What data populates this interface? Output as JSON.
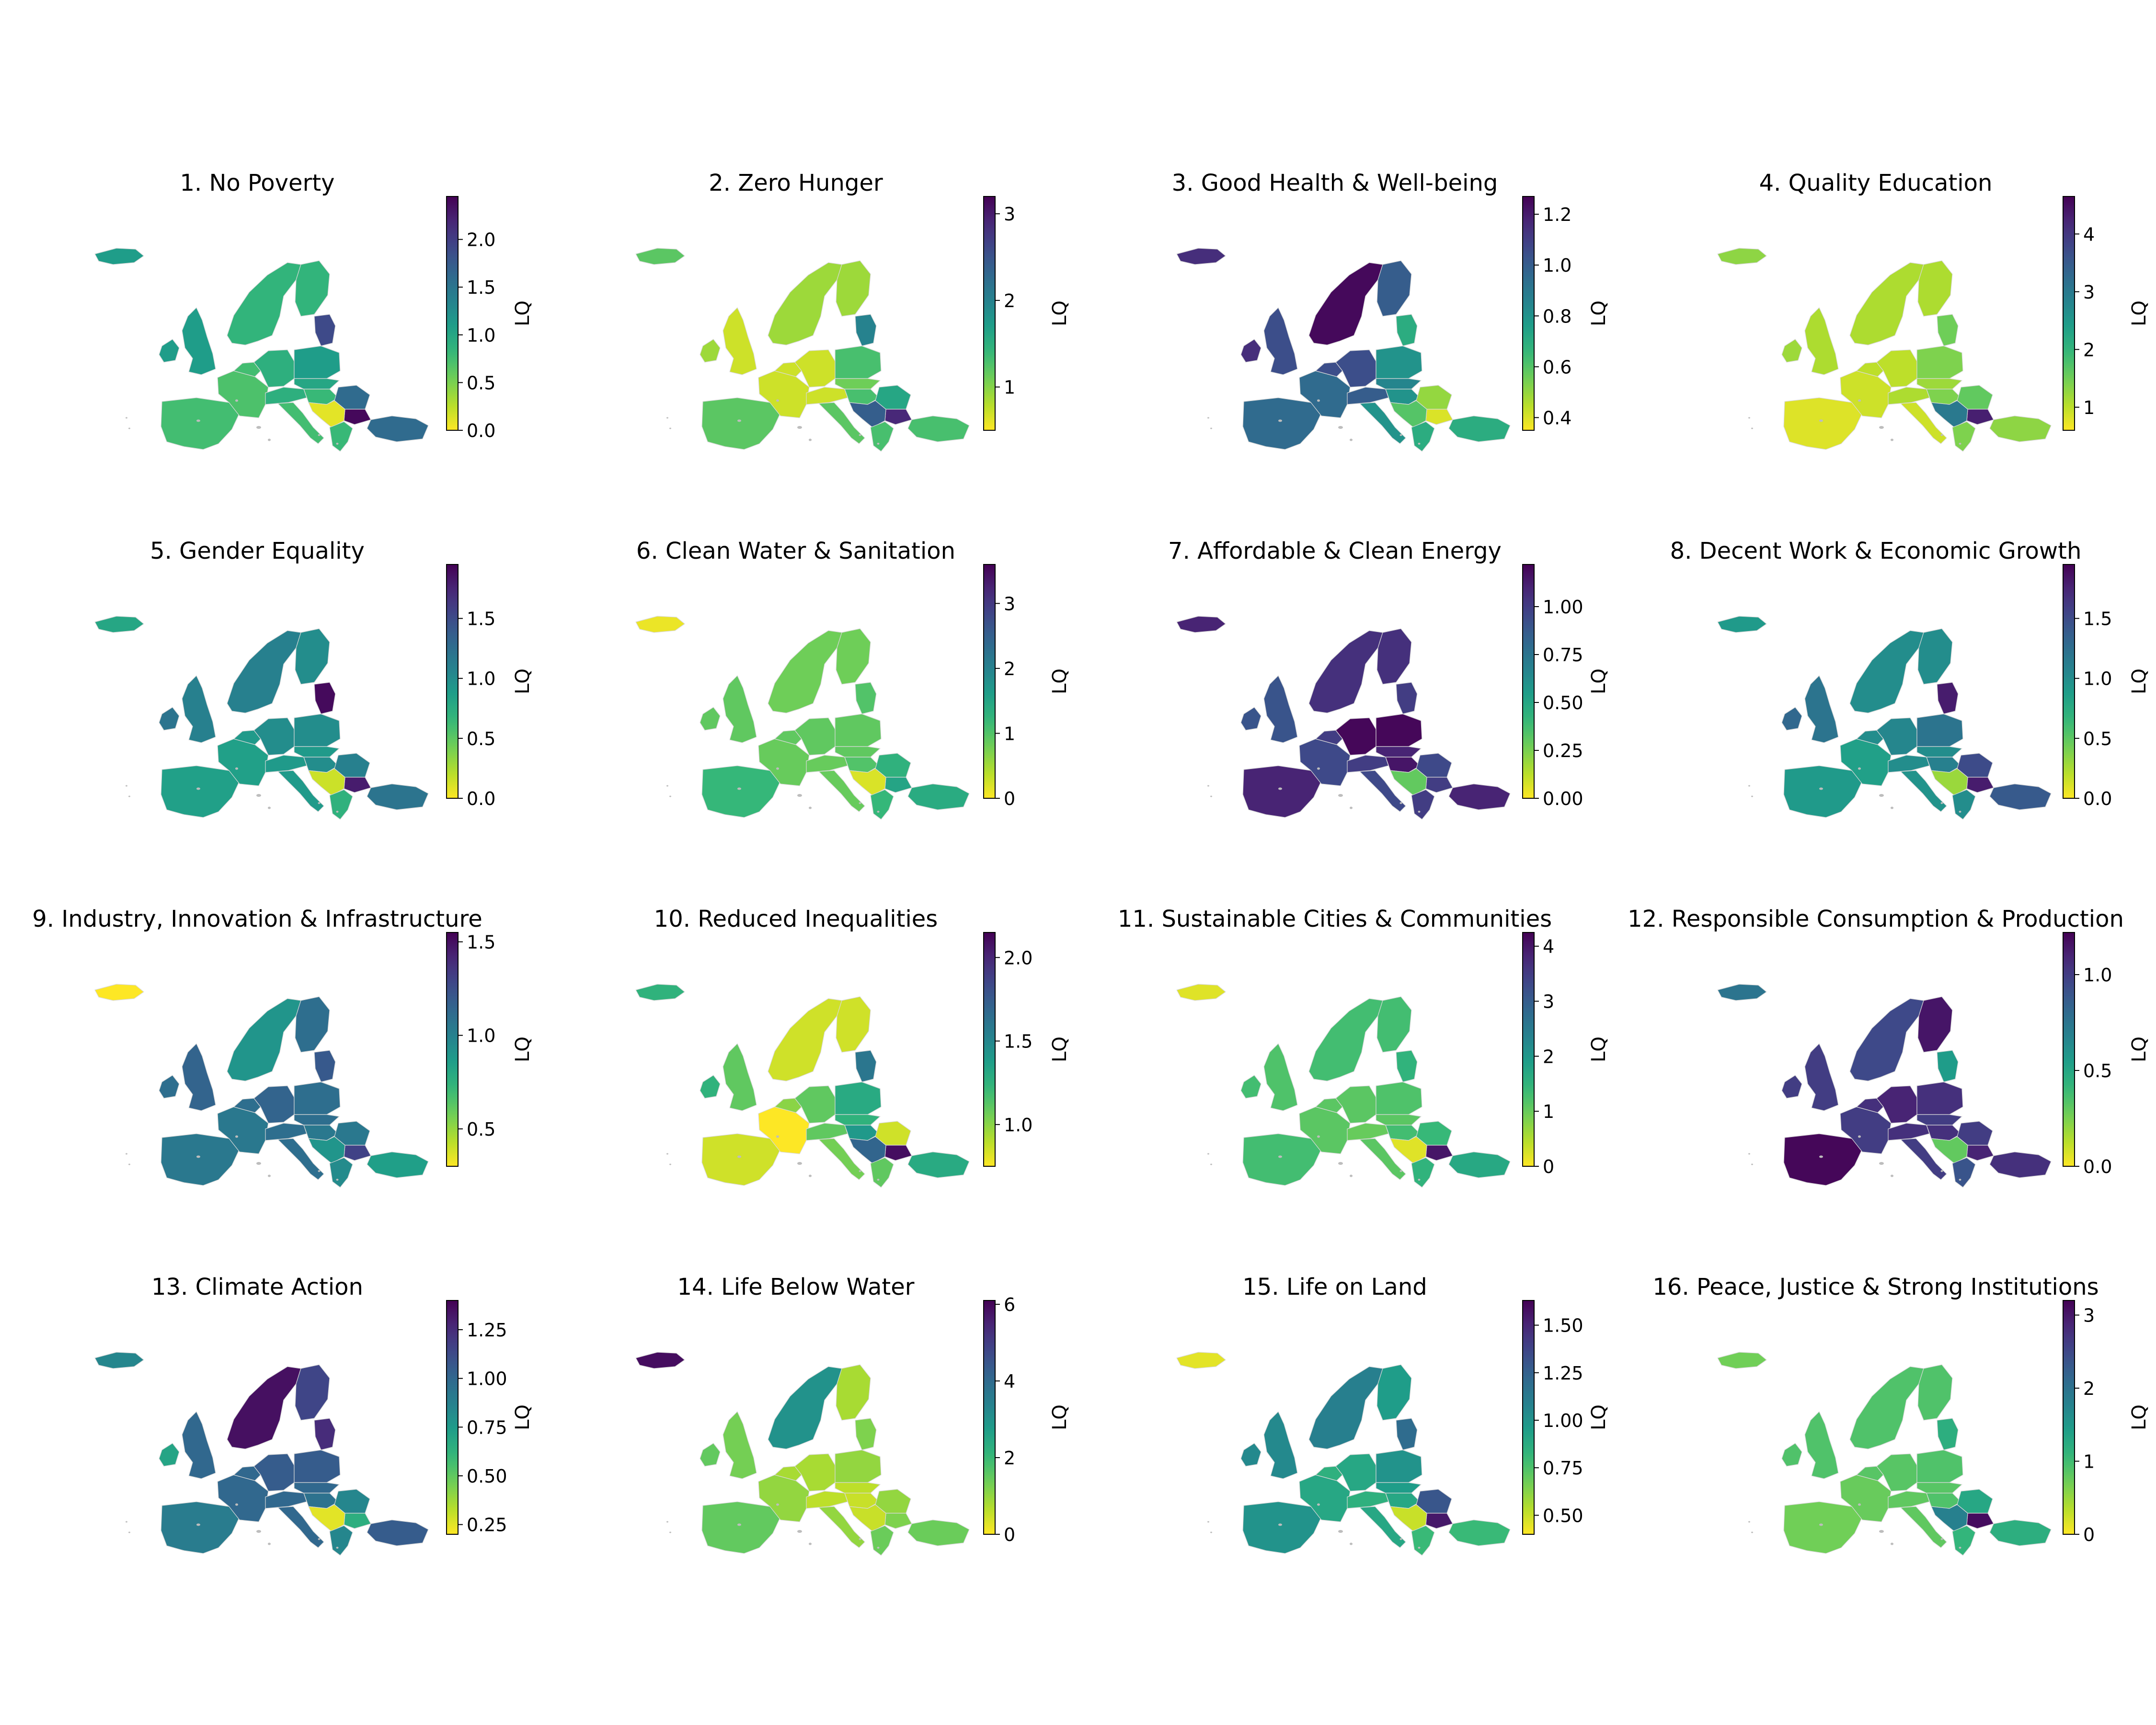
{
  "figure": {
    "colorbar_label": "LQ",
    "colormap": "viridis_r",
    "colormap_stops": [
      "#fde725",
      "#b5de2b",
      "#6ece58",
      "#35b779",
      "#1f9e89",
      "#26828e",
      "#31688e",
      "#3e4989",
      "#482878",
      "#440154"
    ]
  },
  "chart_data": [
    {
      "type": "choropleth",
      "title": "1. No Poverty",
      "colorbar": {
        "label": "LQ",
        "range": [
          0,
          2.45
        ],
        "ticks": [
          "0.0",
          "0.5",
          "1.0",
          "1.5",
          "2.0"
        ],
        "tick_values": [
          0,
          0.5,
          1.0,
          1.5,
          2.0
        ]
      },
      "values": {
        "iceland": 1.1,
        "ireland": 1.1,
        "uk": 1.1,
        "iberia": 0.75,
        "france": 0.7,
        "italy": 0.75,
        "benelux": 0.75,
        "germany": 0.9,
        "alps": 0.9,
        "poland": 1.1,
        "czech_slovakia": 1.0,
        "hungary": 0.8,
        "romania": 1.6,
        "bulgaria": 2.4,
        "balkans": 0.1,
        "greece": 0.8,
        "turkey": 1.6,
        "scandinavia": 0.85,
        "finland": 0.85,
        "baltics": 1.9
      }
    },
    {
      "type": "choropleth",
      "title": "2. Zero Hunger",
      "colorbar": {
        "label": "LQ",
        "range": [
          0.5,
          3.2
        ],
        "ticks": [
          "1",
          "2",
          "3"
        ],
        "tick_values": [
          1,
          2,
          3
        ]
      },
      "values": {
        "iceland": 1.2,
        "ireland": 0.9,
        "uk": 0.7,
        "iberia": 1.2,
        "france": 0.7,
        "italy": 1.2,
        "benelux": 0.7,
        "germany": 0.7,
        "alps": 0.7,
        "poland": 1.3,
        "czech_slovakia": 1.1,
        "hungary": 1.3,
        "romania": 1.6,
        "bulgaria": 2.9,
        "balkans": 2.4,
        "greece": 1.3,
        "turkey": 1.3,
        "scandinavia": 0.9,
        "finland": 0.9,
        "baltics": 2.0
      }
    },
    {
      "type": "choropleth",
      "title": "3. Good Health & Well-being",
      "colorbar": {
        "label": "LQ",
        "range": [
          0.35,
          1.27
        ],
        "ticks": [
          "0.4",
          "0.6",
          "0.8",
          "1.0",
          "1.2"
        ],
        "tick_values": [
          0.4,
          0.6,
          0.8,
          1.0,
          1.2
        ]
      },
      "values": {
        "iceland": 1.15,
        "ireland": 1.15,
        "uk": 1.05,
        "iberia": 0.95,
        "france": 0.95,
        "italy": 0.8,
        "benelux": 1.05,
        "germany": 1.05,
        "alps": 1.0,
        "poland": 0.8,
        "czech_slovakia": 0.85,
        "hungary": 0.8,
        "romania": 0.5,
        "bulgaria": 0.4,
        "balkans": 0.6,
        "greece": 0.7,
        "turkey": 0.7,
        "scandinavia": 1.25,
        "finland": 1.0,
        "baltics": 0.7
      }
    },
    {
      "type": "choropleth",
      "title": "4. Quality Education",
      "colorbar": {
        "label": "LQ",
        "range": [
          0.6,
          4.65
        ],
        "ticks": [
          "1",
          "2",
          "3",
          "4"
        ],
        "tick_values": [
          1,
          2,
          3,
          4
        ]
      },
      "values": {
        "iceland": 1.3,
        "ireland": 1.2,
        "uk": 1.1,
        "iberia": 0.8,
        "france": 0.9,
        "italy": 0.9,
        "benelux": 1.0,
        "germany": 1.0,
        "alps": 1.1,
        "poland": 1.4,
        "czech_slovakia": 1.2,
        "hungary": 1.4,
        "romania": 1.6,
        "bulgaria": 4.3,
        "balkans": 3.0,
        "greece": 1.4,
        "turkey": 1.3,
        "scandinavia": 1.1,
        "finland": 1.1,
        "baltics": 1.5
      }
    },
    {
      "type": "choropleth",
      "title": "5. Gender Equality",
      "colorbar": {
        "label": "LQ",
        "range": [
          0,
          1.95
        ],
        "ticks": [
          "0.0",
          "0.5",
          "1.0",
          "1.5"
        ],
        "tick_values": [
          0,
          0.5,
          1.0,
          1.5
        ]
      },
      "values": {
        "iceland": 0.8,
        "ireland": 1.2,
        "uk": 1.1,
        "iberia": 0.85,
        "france": 0.85,
        "italy": 0.9,
        "benelux": 0.9,
        "germany": 1.0,
        "alps": 0.9,
        "poland": 1.0,
        "czech_slovakia": 0.9,
        "hungary": 1.0,
        "romania": 1.1,
        "bulgaria": 1.8,
        "balkans": 0.15,
        "greece": 0.7,
        "turkey": 1.2,
        "scandinavia": 1.1,
        "finland": 1.0,
        "baltics": 1.9
      }
    },
    {
      "type": "choropleth",
      "title": "6. Clean Water & Sanitation",
      "colorbar": {
        "label": "LQ",
        "range": [
          0,
          3.6
        ],
        "ticks": [
          "0",
          "1",
          "2",
          "3"
        ],
        "tick_values": [
          0,
          1,
          2,
          3
        ]
      },
      "values": {
        "iceland": 0.1,
        "ireland": 0.9,
        "uk": 0.9,
        "iberia": 1.2,
        "france": 0.85,
        "italy": 0.85,
        "benelux": 0.9,
        "germany": 0.9,
        "alps": 0.85,
        "poland": 0.9,
        "czech_slovakia": 0.9,
        "hungary": 1.0,
        "romania": 1.3,
        "bulgaria": 1.5,
        "balkans": 0.2,
        "greece": 1.2,
        "turkey": 1.4,
        "scandinavia": 0.8,
        "finland": 0.8,
        "baltics": 1.0
      }
    },
    {
      "type": "choropleth",
      "title": "7. Affordable & Clean Energy",
      "colorbar": {
        "label": "LQ",
        "range": [
          0,
          1.22
        ],
        "ticks": [
          "0.00",
          "0.25",
          "0.50",
          "0.75",
          "1.00"
        ],
        "tick_values": [
          0,
          0.25,
          0.5,
          0.75,
          1.0
        ]
      },
      "values": {
        "iceland": 1.1,
        "ireland": 0.9,
        "uk": 0.9,
        "iberia": 1.1,
        "france": 0.95,
        "italy": 0.95,
        "benelux": 1.0,
        "germany": 1.2,
        "alps": 1.0,
        "poland": 1.2,
        "czech_slovakia": 1.1,
        "hungary": 1.15,
        "romania": 0.95,
        "bulgaria": 1.0,
        "balkans": 0.3,
        "greece": 1.0,
        "turkey": 1.1,
        "scandinavia": 1.05,
        "finland": 1.05,
        "baltics": 1.0
      }
    },
    {
      "type": "choropleth",
      "title": "8. Decent Work & Economic Growth",
      "colorbar": {
        "label": "LQ",
        "range": [
          0,
          1.95
        ],
        "ticks": [
          "0.0",
          "0.5",
          "1.0",
          "1.5"
        ],
        "tick_values": [
          0,
          0.5,
          1.0,
          1.5
        ]
      },
      "values": {
        "iceland": 0.9,
        "ireland": 1.3,
        "uk": 1.2,
        "iberia": 0.9,
        "france": 0.85,
        "italy": 0.95,
        "benelux": 1.0,
        "germany": 1.05,
        "alps": 1.0,
        "poland": 1.2,
        "czech_slovakia": 1.0,
        "hungary": 1.1,
        "romania": 1.5,
        "bulgaria": 1.8,
        "balkans": 0.3,
        "greece": 1.0,
        "turkey": 1.4,
        "scandinavia": 1.0,
        "finland": 1.0,
        "baltics": 1.8
      }
    },
    {
      "type": "choropleth",
      "title": "9. Industry, Innovation & Infrastructure",
      "colorbar": {
        "label": "LQ",
        "range": [
          0.3,
          1.55
        ],
        "ticks": [
          "0.5",
          "1.0",
          "1.5"
        ],
        "tick_values": [
          0.5,
          1.0,
          1.5
        ]
      },
      "values": {
        "iceland": 0.3,
        "ireland": 1.1,
        "uk": 1.15,
        "iberia": 1.05,
        "france": 1.05,
        "italy": 1.1,
        "benelux": 1.1,
        "germany": 1.15,
        "alps": 1.1,
        "poland": 1.1,
        "czech_slovakia": 1.1,
        "hungary": 1.05,
        "romania": 1.05,
        "bulgaria": 1.3,
        "balkans": 0.9,
        "greece": 0.95,
        "turkey": 0.85,
        "scandinavia": 0.9,
        "finland": 1.1,
        "baltics": 1.2
      }
    },
    {
      "type": "choropleth",
      "title": "10.  Reduced Inequalities",
      "colorbar": {
        "label": "LQ",
        "range": [
          0.75,
          2.15
        ],
        "ticks": [
          "1.0",
          "1.5",
          "2.0"
        ],
        "tick_values": [
          1.0,
          1.5,
          2.0
        ]
      },
      "values": {
        "iceland": 1.25,
        "ireland": 1.25,
        "uk": 1.1,
        "iberia": 0.85,
        "france": 0.75,
        "italy": 1.05,
        "benelux": 1.0,
        "germany": 1.1,
        "alps": 1.1,
        "poland": 1.3,
        "czech_slovakia": 1.25,
        "hungary": 1.4,
        "romania": 0.85,
        "bulgaria": 2.1,
        "balkans": 1.7,
        "greece": 1.1,
        "turkey": 1.3,
        "scandinavia": 0.85,
        "finland": 0.85,
        "baltics": 1.6
      }
    },
    {
      "type": "choropleth",
      "title": "11.  Sustainable Cities & Communities",
      "colorbar": {
        "label": "LQ",
        "range": [
          0,
          4.25
        ],
        "ticks": [
          "0",
          "1",
          "2",
          "3",
          "4"
        ],
        "tick_values": [
          0,
          1,
          2,
          3,
          4
        ]
      },
      "values": {
        "iceland": 0.2,
        "ireland": 1.3,
        "uk": 1.2,
        "iberia": 1.3,
        "france": 1.1,
        "italy": 1.1,
        "benelux": 1.1,
        "germany": 1.1,
        "alps": 1.0,
        "poland": 1.2,
        "czech_slovakia": 1.1,
        "hungary": 1.3,
        "romania": 1.4,
        "bulgaria": 4.0,
        "balkans": 0.2,
        "greece": 1.5,
        "turkey": 1.7,
        "scandinavia": 1.3,
        "finland": 1.3,
        "baltics": 1.5
      }
    },
    {
      "type": "choropleth",
      "title": "12.  Responsible Consumption & Production",
      "colorbar": {
        "label": "LQ",
        "range": [
          0,
          1.22
        ],
        "ticks": [
          "0.0",
          "0.5",
          "1.0"
        ],
        "tick_values": [
          0,
          0.5,
          1.0
        ]
      },
      "values": {
        "iceland": 0.75,
        "ireland": 1.0,
        "uk": 1.0,
        "iberia": 1.2,
        "france": 1.0,
        "italy": 1.0,
        "benelux": 1.05,
        "germany": 1.1,
        "alps": 1.05,
        "poland": 1.05,
        "czech_slovakia": 1.0,
        "hungary": 1.05,
        "romania": 1.0,
        "bulgaria": 1.1,
        "balkans": 0.3,
        "greece": 0.9,
        "turkey": 1.05,
        "scandinavia": 0.95,
        "finland": 1.15,
        "baltics": 0.55
      }
    },
    {
      "type": "choropleth",
      "title": "13.  Climate Action",
      "colorbar": {
        "label": "LQ",
        "range": [
          0.2,
          1.4
        ],
        "ticks": [
          "0.25",
          "0.50",
          "0.75",
          "1.00",
          "1.25"
        ],
        "tick_values": [
          0.25,
          0.5,
          0.75,
          1.0,
          1.25
        ]
      },
      "values": {
        "iceland": 0.85,
        "ireland": 0.7,
        "uk": 1.0,
        "iberia": 0.9,
        "france": 1.0,
        "italy": 1.0,
        "benelux": 1.0,
        "germany": 1.05,
        "alps": 1.0,
        "poland": 1.05,
        "czech_slovakia": 1.0,
        "hungary": 0.95,
        "romania": 0.85,
        "bulgaria": 0.65,
        "balkans": 0.25,
        "greece": 0.85,
        "turkey": 1.05,
        "scandinavia": 1.35,
        "finland": 1.15,
        "baltics": 1.25
      }
    },
    {
      "type": "choropleth",
      "title": "14.  Life Below Water",
      "colorbar": {
        "label": "LQ",
        "range": [
          0,
          6.1
        ],
        "ticks": [
          "0",
          "2",
          "4",
          "6"
        ],
        "tick_values": [
          0,
          2,
          4,
          6
        ]
      },
      "values": {
        "iceland": 5.9,
        "ireland": 1.5,
        "uk": 1.3,
        "iberia": 1.5,
        "france": 1.0,
        "italy": 1.0,
        "benelux": 0.8,
        "germany": 0.8,
        "alps": 0.6,
        "poland": 1.0,
        "czech_slovakia": 0.6,
        "hungary": 0.5,
        "romania": 1.0,
        "bulgaria": 1.2,
        "balkans": 0.5,
        "greece": 1.4,
        "turkey": 1.4,
        "scandinavia": 3.0,
        "finland": 0.8,
        "baltics": 1.2
      }
    },
    {
      "type": "choropleth",
      "title": "15.  Life on Land",
      "colorbar": {
        "label": "LQ",
        "range": [
          0.4,
          1.63
        ],
        "ticks": [
          "0.50",
          "0.75",
          "1.00",
          "1.25",
          "1.50"
        ],
        "tick_values": [
          0.5,
          0.75,
          1.0,
          1.25,
          1.5
        ]
      },
      "values": {
        "iceland": 0.45,
        "ireland": 1.05,
        "uk": 1.05,
        "iberia": 1.0,
        "france": 0.9,
        "italy": 0.9,
        "benelux": 0.85,
        "germany": 0.9,
        "alps": 0.85,
        "poland": 1.0,
        "czech_slovakia": 0.95,
        "hungary": 0.9,
        "romania": 1.3,
        "bulgaria": 1.55,
        "balkans": 0.5,
        "greece": 0.8,
        "turkey": 0.8,
        "scandinavia": 1.1,
        "finland": 0.95,
        "baltics": 1.2
      }
    },
    {
      "type": "choropleth",
      "title": "16.  Peace, Justice & Strong Institutions",
      "colorbar": {
        "label": "LQ",
        "range": [
          0,
          3.2
        ],
        "ticks": [
          "0",
          "1",
          "2",
          "3"
        ],
        "tick_values": [
          0,
          1,
          2,
          3
        ]
      },
      "values": {
        "iceland": 0.7,
        "ireland": 0.9,
        "uk": 0.9,
        "iberia": 0.7,
        "france": 0.75,
        "italy": 0.8,
        "benelux": 0.85,
        "germany": 0.85,
        "alps": 0.8,
        "poland": 0.9,
        "czech_slovakia": 0.85,
        "hungary": 0.9,
        "romania": 1.3,
        "bulgaria": 3.1,
        "balkans": 1.8,
        "greece": 1.1,
        "turkey": 1.2,
        "scandinavia": 0.9,
        "finland": 0.9,
        "baltics": 1.2
      }
    }
  ]
}
